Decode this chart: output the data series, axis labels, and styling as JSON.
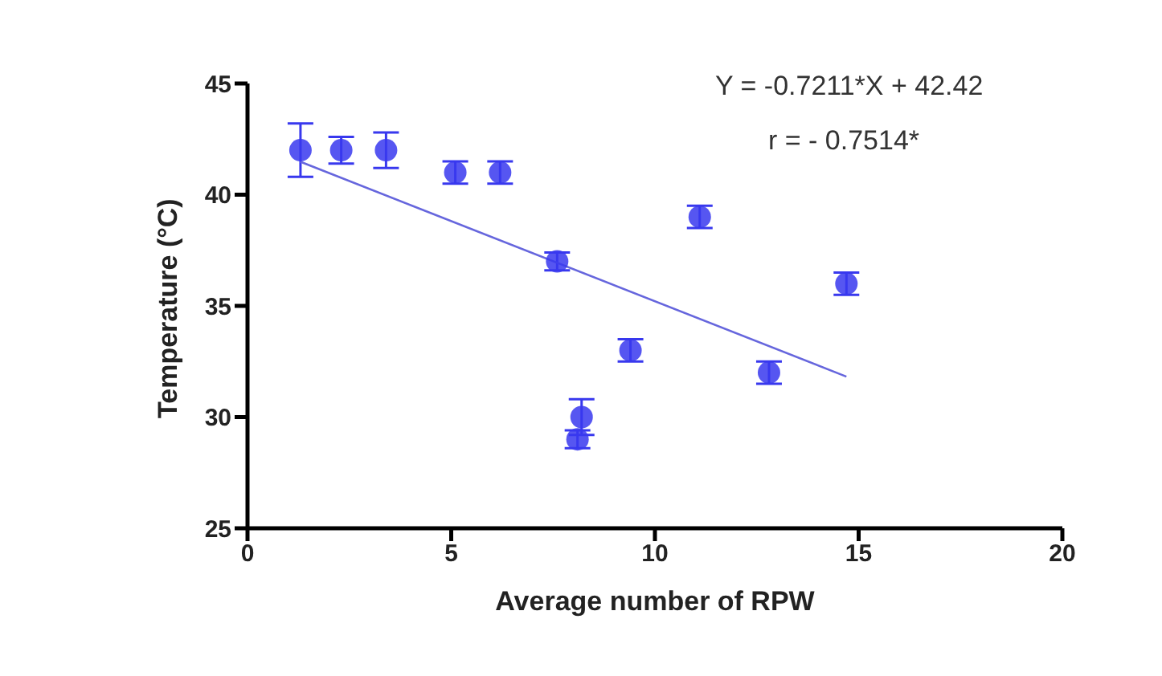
{
  "chart_data": {
    "type": "scatter",
    "xlabel": "Average number of RPW",
    "ylabel": "Temperature (°C)",
    "xlim": [
      0,
      20
    ],
    "xticks": [
      0,
      5,
      10,
      15,
      20
    ],
    "ylim": [
      25,
      45
    ],
    "yticks": [
      25,
      30,
      35,
      40,
      45
    ],
    "grid": false,
    "legend": false,
    "marker": "circle",
    "series": [
      {
        "color": "#3838ee",
        "x": [
          1.3,
          2.3,
          3.4,
          5.1,
          6.2,
          7.6,
          8.1,
          8.2,
          9.4,
          11.1,
          12.8,
          14.7
        ],
        "values": [
          42,
          42,
          42,
          41,
          41,
          37,
          29,
          30,
          33,
          39,
          32,
          36
        ],
        "errors": [
          1.2,
          0.6,
          0.8,
          0.5,
          0.5,
          0.4,
          0.4,
          0.8,
          0.5,
          0.5,
          0.5,
          0.5
        ]
      },
      {
        "type": "line",
        "color": "#6666dd",
        "x": [
          1.3,
          14.7
        ],
        "values": [
          41.48,
          31.82
        ],
        "line_style": "solid",
        "marker": "none"
      }
    ],
    "annotations": [
      "Y = -0.7211*X + 42.42",
      "r = - 0.7514*"
    ]
  }
}
